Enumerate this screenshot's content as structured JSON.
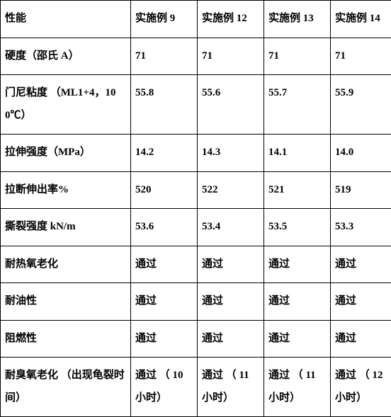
{
  "table": {
    "columns": [
      "性能",
      "实施例 9",
      "实施例 12",
      "实施例 13",
      "实施例 14"
    ],
    "rows": [
      [
        "硬度（邵氏 A）",
        "71",
        "71",
        "71",
        "71"
      ],
      [
        "门尼粘度 （ML1+4，100℃）",
        "55.8",
        "55.6",
        "55.7",
        "55.9"
      ],
      [
        "拉伸强度（MPa）",
        "14.2",
        "14.3",
        "14.1",
        "14.0"
      ],
      [
        "拉断伸出率%",
        "520",
        "522",
        "521",
        "519"
      ],
      [
        "撕裂强度 kN/m",
        "53.6",
        "53.4",
        "53.5",
        "53.3"
      ],
      [
        "耐热氧老化",
        "通过",
        "通过",
        "通过",
        "通过"
      ],
      [
        "耐油性",
        "通过",
        "通过",
        "通过",
        "通过"
      ],
      [
        "阻燃性",
        "通过",
        "通过",
        "通过",
        "通过"
      ],
      [
        "耐臭氧老化 （出现龟裂时间）",
        "通过 （ 10 小时）",
        "通过 （ 11 小时）",
        "通过 （ 11 小时）",
        "通过 （ 12 小时）"
      ]
    ]
  }
}
